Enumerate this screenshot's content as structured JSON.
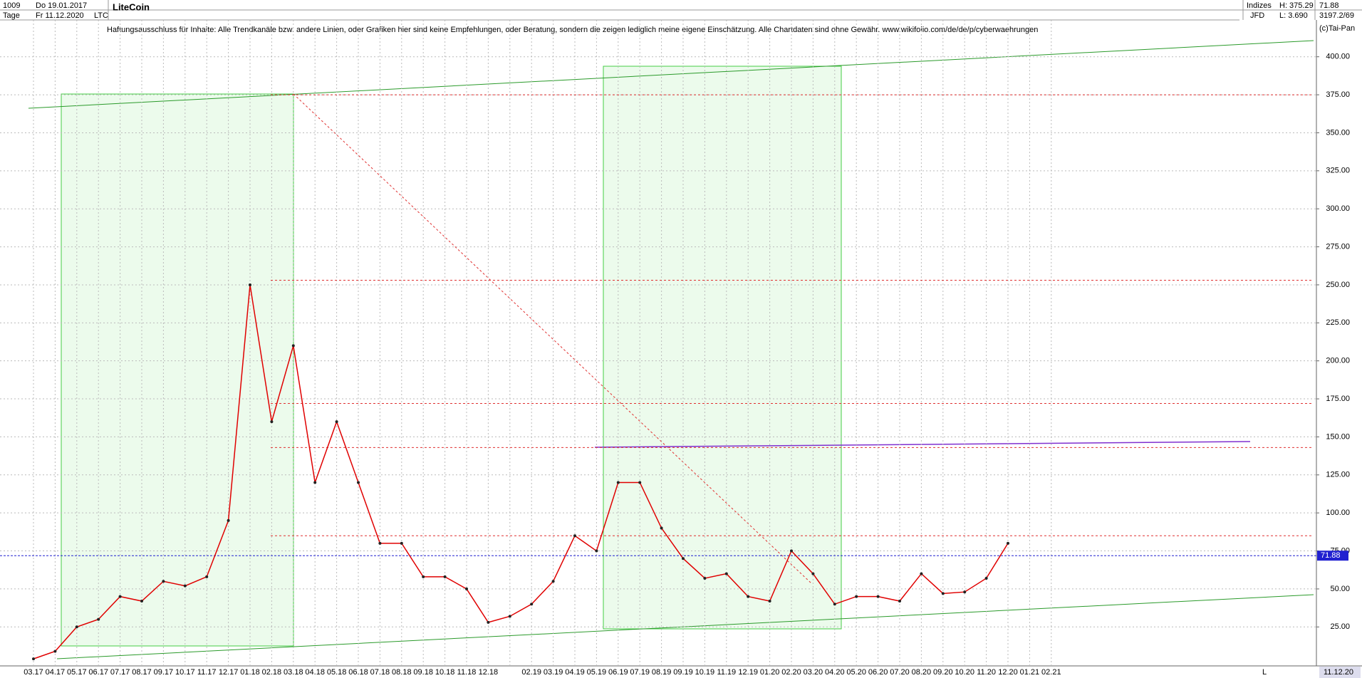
{
  "header": {
    "count": "1009",
    "period": "Tage",
    "start": "Do 19.01.2017",
    "end": "Fr 11.12.2020",
    "symbol": "LTC",
    "name": "LiteCoin",
    "disclaimer": "Haftungsausschluss für Inhalte: Alle Trendkanäle bzw. andere Linien, oder Grafiken hier sind keine Empfehlungen, oder Beratung, sondern die zeigen lediglich meine eigene Einschätzung. Alle Chartdaten sind ohne Gewähr.  www.wikifolio.com/de/de/p/cyberwaehrungen",
    "group": "Indizes",
    "source": "JFD",
    "high": "H: 375.29",
    "low": "L: 3.690",
    "last": "71.88",
    "info": "3197.2/69",
    "copyright": "(c)Tai-Pan",
    "scale_mode": "L",
    "date": "11.12.20"
  },
  "chart_data": {
    "type": "line",
    "color": "#e00000",
    "categories": [
      "03.17",
      "04.17",
      "05.17",
      "06.17",
      "07.17",
      "08.17",
      "09.17",
      "10.17",
      "11.17",
      "12.17",
      "01.18",
      "02.18",
      "03.18",
      "04.18",
      "05.18",
      "06.18",
      "07.18",
      "08.18",
      "09.18",
      "10.18",
      "11.18",
      "12.18",
      null,
      "02.19",
      "03.19",
      "04.19",
      "05.19",
      "06.19",
      "07.19",
      "08.19",
      "09.19",
      "10.19",
      "11.19",
      "12.19",
      "01.20",
      "02.20",
      "03.20",
      "04.20",
      "05.20",
      "06.20",
      "07.20",
      "08.20",
      "09.20",
      "10.20",
      "11.20",
      "12.20",
      "01.21",
      "02.21"
    ],
    "values": [
      4,
      9,
      25,
      30,
      45,
      42,
      55,
      52,
      58,
      95,
      250,
      160,
      210,
      120,
      160,
      120,
      80,
      80,
      58,
      58,
      50,
      28,
      32,
      40,
      55,
      85,
      75,
      120,
      120,
      90,
      70,
      57,
      60,
      45,
      42,
      75,
      60,
      40,
      45,
      45,
      42,
      60,
      47,
      48,
      57,
      80,
      null,
      null
    ],
    "ylim": [
      5,
      420
    ],
    "yticks": [
      {
        "value": 25,
        "label": "25.00"
      },
      {
        "value": 50,
        "label": "50.00"
      },
      {
        "value": 75,
        "label": "75.00"
      },
      {
        "value": 100,
        "label": "100.00"
      },
      {
        "value": 125,
        "label": "125.00"
      },
      {
        "value": 150,
        "label": "150.00"
      },
      {
        "value": 175,
        "label": "175.00"
      },
      {
        "value": 200,
        "label": "200.00"
      },
      {
        "value": 225,
        "label": "225.00"
      },
      {
        "value": 250,
        "label": "250.00"
      },
      {
        "value": 275,
        "label": "275.00"
      },
      {
        "value": 300,
        "label": "300.00"
      },
      {
        "value": 325,
        "label": "325.00"
      },
      {
        "value": 350,
        "label": "350.00"
      },
      {
        "value": 375,
        "label": "375.00"
      },
      {
        "value": 400,
        "label": "400.00"
      }
    ],
    "grid": true,
    "reference_lines": [
      375,
      253,
      172,
      143,
      85
    ],
    "last_value": 71.88
  }
}
